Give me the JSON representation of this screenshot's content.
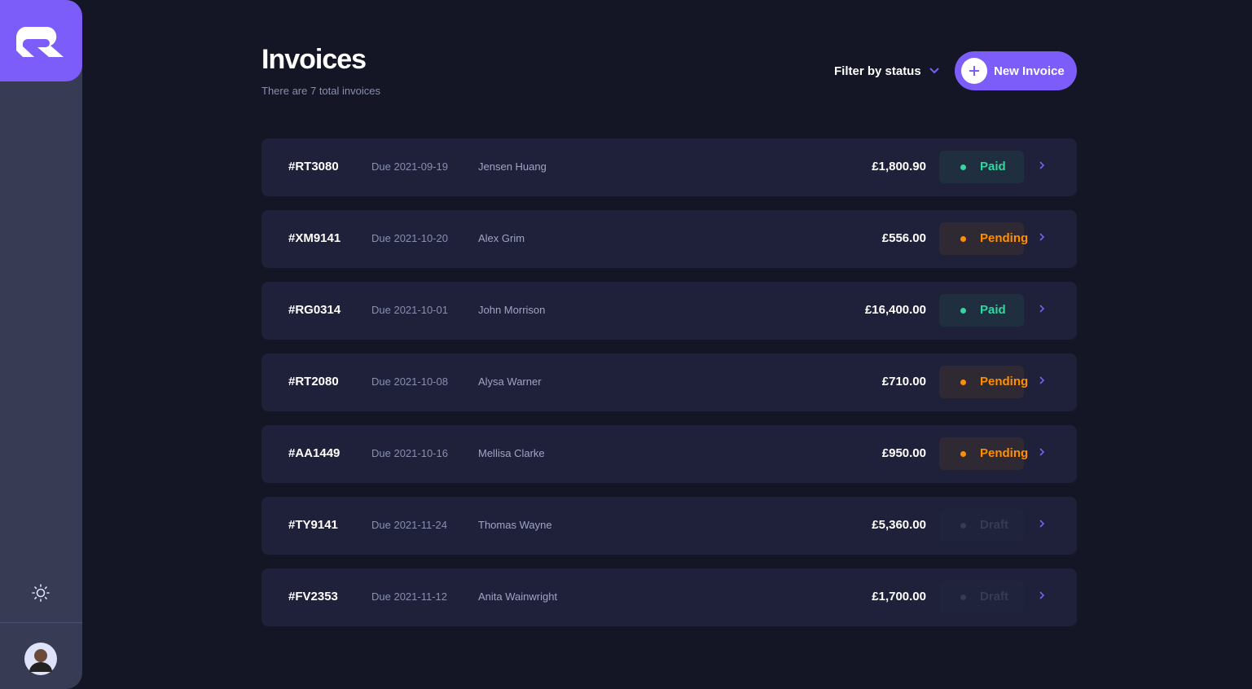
{
  "header": {
    "title": "Invoices",
    "subtitle": "There are 7 total invoices",
    "filter": "Filter by status",
    "new_button": "New Invoice"
  },
  "invoices": [
    {
      "id": "#RT3080",
      "due": "Due 2021-09-19",
      "client": "Jensen Huang",
      "amount": "£1,800.90",
      "status": "Paid",
      "status_color": "#33d69f"
    },
    {
      "id": "#XM9141",
      "due": "Due 2021-10-20",
      "client": "Alex Grim",
      "amount": "£556.00",
      "status": "Pending",
      "status_color": "#ff8f00"
    },
    {
      "id": "#RG0314",
      "due": "Due 2021-10-01",
      "client": "John Morrison",
      "amount": "£16,400.00",
      "status": "Paid",
      "status_color": "#33d69f"
    },
    {
      "id": "#RT2080",
      "due": "Due 2021-10-08",
      "client": "Alysa Warner",
      "amount": "£710.00",
      "status": "Pending",
      "status_color": "#ff8f00"
    },
    {
      "id": "#AA1449",
      "due": "Due 2021-10-16",
      "client": "Mellisa Clarke",
      "amount": "£950.00",
      "status": "Pending",
      "status_color": "#ff8f00"
    },
    {
      "id": "#TY9141",
      "due": "Due 2021-11-24",
      "client": "Thomas Wayne",
      "amount": "£5,360.00",
      "status": "Draft",
      "status_color": "#373b53"
    },
    {
      "id": "#FV2353",
      "due": "Due 2021-11-12",
      "client": "Anita Wainwright",
      "amount": "£1,700.00",
      "status": "Draft",
      "status_color": "#373b53"
    }
  ]
}
